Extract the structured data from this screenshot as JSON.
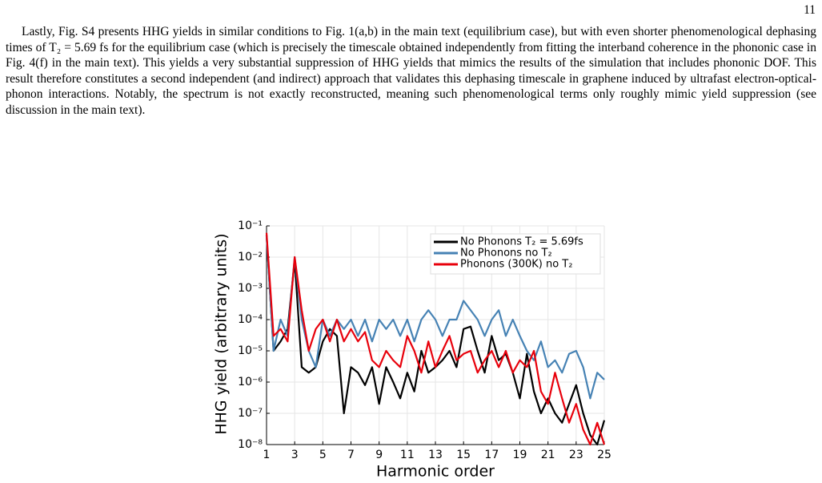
{
  "page_number": "11",
  "paragraph": "Lastly, Fig. S4 presents HHG yields in similar conditions to Fig. 1(a,b) in the main text (equilibrium case), but with even shorter phenomenological dephasing times of T₂ = 5.69 fs for the equilibrium case (which is precisely the timescale obtained independently from fitting the interband coherence in the phononic case in Fig. 4(f) in the main text). This yields a very substantial suppression of HHG yields that mimics the results of the simulation that includes phononic DOF. This result therefore constitutes a second independent (and indirect) approach that validates this dephasing timescale in graphene induced by ultrafast electron-optical-phonon interactions. Notably, the spectrum is not exactly reconstructed, meaning such phenomenological terms only roughly mimic yield suppression (see discussion in the main text).",
  "chart_data": {
    "type": "line",
    "x_label": "Harmonic order",
    "y_label": "HHG yield (arbitrary units)",
    "log_y": true,
    "grid": true,
    "legend": "top-right",
    "x": [
      1,
      1.5,
      2,
      2.5,
      3,
      3.5,
      4,
      4.5,
      5,
      5.5,
      6,
      6.5,
      7,
      7.5,
      8,
      8.5,
      9,
      9.5,
      10,
      10.5,
      11,
      11.5,
      12,
      12.5,
      13,
      13.5,
      14,
      14.5,
      15,
      15.5,
      16,
      16.5,
      17,
      17.5,
      18,
      18.5,
      19,
      19.5,
      20,
      20.5,
      21,
      21.5,
      22,
      22.5,
      23,
      23.5,
      24,
      24.5,
      25
    ],
    "xlim": [
      1,
      25
    ],
    "xticks": [
      1,
      3,
      5,
      7,
      9,
      11,
      13,
      15,
      17,
      19,
      21,
      23,
      25
    ],
    "ylim": [
      1e-08,
      0.1
    ],
    "yticks": [
      {
        "value": 0.1,
        "label": "10⁻¹"
      },
      {
        "value": 0.01,
        "label": "10⁻²"
      },
      {
        "value": 0.001,
        "label": "10⁻³"
      },
      {
        "value": 0.0001,
        "label": "10⁻⁴"
      },
      {
        "value": 1e-05,
        "label": "10⁻⁵"
      },
      {
        "value": 1e-06,
        "label": "10⁻⁶"
      },
      {
        "value": 1e-07,
        "label": "10⁻⁷"
      },
      {
        "value": 1e-08,
        "label": "10⁻⁸"
      }
    ],
    "series": [
      {
        "name": "No Phonons T₂ = 5.69fs",
        "color": "#000000",
        "values": [
          0.05,
          1e-05,
          2e-05,
          5e-05,
          0.008,
          3e-06,
          2e-06,
          3e-06,
          2e-05,
          5e-05,
          3e-05,
          1e-07,
          3e-06,
          2e-06,
          8e-07,
          3e-06,
          2e-07,
          3e-06,
          1e-06,
          3e-07,
          2e-06,
          5e-07,
          1e-05,
          2e-06,
          3e-06,
          5e-06,
          1e-05,
          3e-06,
          5e-05,
          6e-05,
          1e-05,
          2e-06,
          3e-05,
          5e-06,
          8e-06,
          2e-06,
          3e-07,
          8e-06,
          5e-07,
          1e-07,
          3e-07,
          1e-07,
          5e-08,
          2e-07,
          8e-07,
          1e-07,
          2e-08,
          1e-08,
          6e-08
        ]
      },
      {
        "name": "No Phonons no T₂",
        "color": "#4682b4",
        "values": [
          0.05,
          1e-05,
          0.0001,
          3e-05,
          0.01,
          0.0001,
          1e-05,
          3e-06,
          0.0001,
          3e-05,
          0.0001,
          5e-05,
          0.0001,
          3e-05,
          0.0001,
          2e-05,
          0.0001,
          5e-05,
          0.0001,
          3e-05,
          0.0001,
          2e-05,
          0.0001,
          0.0002,
          0.0001,
          3e-05,
          0.0001,
          0.0001,
          0.0004,
          0.0002,
          0.0001,
          3e-05,
          0.0001,
          0.0002,
          3e-05,
          0.0001,
          3e-05,
          1e-05,
          5e-06,
          2e-05,
          3e-06,
          5e-06,
          2e-06,
          8e-06,
          1e-05,
          3e-06,
          3e-07,
          2e-06,
          1.2e-06
        ]
      },
      {
        "name": "Phonons (300K) no T₂",
        "color": "#e8000b",
        "values": [
          0.06,
          3e-05,
          5e-05,
          2e-05,
          0.01,
          0.0002,
          1e-05,
          5e-05,
          0.0001,
          2e-05,
          0.0001,
          2e-05,
          5e-05,
          2e-05,
          4e-05,
          5e-06,
          3e-06,
          1e-05,
          5e-06,
          3e-06,
          3e-05,
          1e-05,
          2e-06,
          2e-05,
          3e-06,
          1e-05,
          3e-05,
          5e-06,
          8e-06,
          1e-05,
          2e-06,
          5e-06,
          1e-05,
          3e-06,
          1e-05,
          2e-06,
          5e-06,
          3e-06,
          1e-05,
          5e-07,
          2e-07,
          2e-06,
          3e-07,
          5e-08,
          2e-07,
          3e-08,
          1e-08,
          5e-08,
          1e-08
        ]
      }
    ]
  }
}
